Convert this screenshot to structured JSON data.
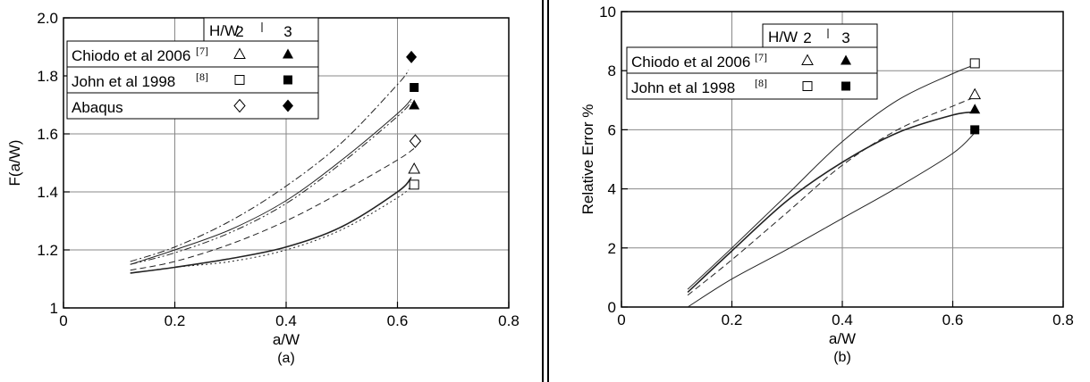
{
  "chart_data": [
    {
      "type": "line",
      "title": "",
      "caption": "(a)",
      "xlabel": "a/W",
      "ylabel": "F(a/W)",
      "xlim": [
        0,
        0.8
      ],
      "ylim": [
        1,
        2
      ],
      "x_ticks": [
        "0",
        "0.2",
        "0.4",
        "0.6",
        "0.8"
      ],
      "y_ticks": [
        "1",
        "1.2",
        "1.4",
        "1.6",
        "1.8",
        "2.0"
      ],
      "grid": true,
      "legend": {
        "placement": "top-left",
        "header": {
          "label": "H/W",
          "col1": "2",
          "col2": "3"
        },
        "rows": [
          {
            "label": "Chiodo et al 2006",
            "ref": "[7]",
            "marker_hw2": "open-triangle",
            "marker_hw3": "filled-triangle"
          },
          {
            "label": "John et al 1998",
            "ref": "[8]",
            "marker_hw2": "open-square",
            "marker_hw3": "filled-square"
          },
          {
            "label": "Abaqus",
            "ref": "",
            "marker_hw2": "open-diamond",
            "marker_hw3": "filled-diamond"
          }
        ]
      },
      "series": [
        {
          "style": "dash-dot",
          "x": [
            0.12,
            0.2,
            0.3,
            0.4,
            0.5,
            0.6,
            0.62
          ],
          "y": [
            1.16,
            1.21,
            1.3,
            1.42,
            1.57,
            1.77,
            1.82
          ]
        },
        {
          "style": "solid",
          "x": [
            0.12,
            0.2,
            0.3,
            0.4,
            0.5,
            0.6,
            0.625
          ],
          "y": [
            1.15,
            1.2,
            1.27,
            1.37,
            1.51,
            1.67,
            1.72
          ]
        },
        {
          "style": "dash-dot-dot",
          "x": [
            0.12,
            0.2,
            0.3,
            0.4,
            0.5,
            0.6,
            0.625
          ],
          "y": [
            1.15,
            1.19,
            1.26,
            1.36,
            1.5,
            1.66,
            1.71
          ]
        },
        {
          "style": "dashed",
          "x": [
            0.12,
            0.2,
            0.3,
            0.4,
            0.5,
            0.6,
            0.63
          ],
          "y": [
            1.13,
            1.16,
            1.22,
            1.3,
            1.4,
            1.51,
            1.55
          ]
        },
        {
          "style": "solid-thick",
          "x": [
            0.12,
            0.2,
            0.3,
            0.4,
            0.5,
            0.6,
            0.625
          ],
          "y": [
            1.12,
            1.14,
            1.17,
            1.21,
            1.28,
            1.4,
            1.45
          ]
        },
        {
          "style": "dotted",
          "x": [
            0.12,
            0.2,
            0.3,
            0.4,
            0.5,
            0.6,
            0.625
          ],
          "y": [
            1.12,
            1.14,
            1.16,
            1.2,
            1.27,
            1.38,
            1.42
          ]
        }
      ],
      "markers": [
        {
          "shape": "filled-diamond",
          "x": 0.625,
          "y": 1.865
        },
        {
          "shape": "filled-square",
          "x": 0.63,
          "y": 1.76
        },
        {
          "shape": "filled-triangle",
          "x": 0.63,
          "y": 1.7
        },
        {
          "shape": "open-diamond",
          "x": 0.632,
          "y": 1.575
        },
        {
          "shape": "open-triangle",
          "x": 0.63,
          "y": 1.48
        },
        {
          "shape": "open-square",
          "x": 0.63,
          "y": 1.425
        }
      ]
    },
    {
      "type": "line",
      "title": "",
      "caption": "(b)",
      "xlabel": "a/W",
      "ylabel": "Relative Error %",
      "xlim": [
        0,
        0.8
      ],
      "ylim": [
        0,
        10
      ],
      "x_ticks": [
        "0",
        "0.2",
        "0.4",
        "0.6",
        "0.8"
      ],
      "y_ticks": [
        "0",
        "2",
        "4",
        "6",
        "8",
        "10"
      ],
      "grid": true,
      "legend": {
        "placement": "top",
        "header": {
          "label": "H/W",
          "col1": "2",
          "col2": "3"
        },
        "rows": [
          {
            "label": "Chiodo et al 2006",
            "ref": "[7]",
            "marker_hw2": "open-triangle",
            "marker_hw3": "filled-triangle"
          },
          {
            "label": "John et al 1998",
            "ref": "[8]",
            "marker_hw2": "open-square",
            "marker_hw3": "filled-square"
          }
        ]
      },
      "series": [
        {
          "style": "solid",
          "x": [
            0.12,
            0.2,
            0.3,
            0.4,
            0.5,
            0.6,
            0.64
          ],
          "y": [
            0.6,
            2.0,
            3.8,
            5.6,
            7.0,
            7.9,
            8.2
          ]
        },
        {
          "style": "dashed",
          "x": [
            0.12,
            0.2,
            0.3,
            0.4,
            0.5,
            0.6,
            0.64
          ],
          "y": [
            0.4,
            1.6,
            3.2,
            4.8,
            6.0,
            6.8,
            7.1
          ]
        },
        {
          "style": "solid-thick",
          "x": [
            0.12,
            0.2,
            0.3,
            0.4,
            0.5,
            0.6,
            0.64
          ],
          "y": [
            0.5,
            1.9,
            3.6,
            4.9,
            5.9,
            6.5,
            6.6
          ]
        },
        {
          "style": "solid",
          "x": [
            0.12,
            0.2,
            0.3,
            0.4,
            0.5,
            0.6,
            0.64
          ],
          "y": [
            0.0,
            0.95,
            1.95,
            3.0,
            4.05,
            5.2,
            5.9
          ]
        }
      ],
      "markers": [
        {
          "shape": "open-square",
          "x": 0.64,
          "y": 8.25
        },
        {
          "shape": "open-triangle",
          "x": 0.64,
          "y": 7.2
        },
        {
          "shape": "filled-triangle",
          "x": 0.64,
          "y": 6.7
        },
        {
          "shape": "filled-square",
          "x": 0.64,
          "y": 6.0
        }
      ]
    }
  ]
}
